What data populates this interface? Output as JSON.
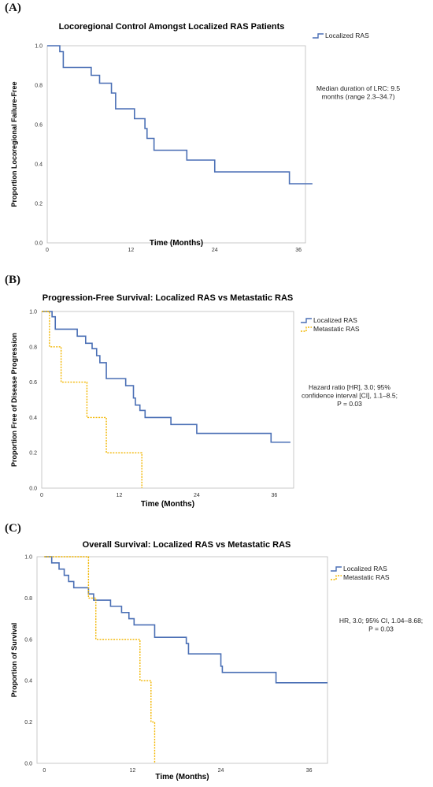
{
  "panels": [
    {
      "letter": "(A)",
      "annotation": [
        "Median duration of LRC: 9.5",
        "months (range 2.3–34.7)"
      ],
      "chart_data": {
        "type": "line",
        "step": true,
        "title": "Locoregional Control Amongst Localized RAS Patients",
        "xlabel": "Time (Months)",
        "ylabel": "Proportion Locoregional Failure-Free",
        "xlim": [
          0,
          37
        ],
        "ylim": [
          0,
          1
        ],
        "xticks": [
          0,
          12,
          24,
          36
        ],
        "yticks": [
          0.0,
          0.2,
          0.4,
          0.6,
          0.8,
          1.0
        ],
        "legend_position": "top-right",
        "grid": false,
        "series": [
          {
            "name": "Localized RAS",
            "color": "#4a6fb5",
            "dashed": false,
            "x": [
              0,
              1.8,
              2.3,
              6.3,
              7.5,
              9.2,
              9.8,
              12.5,
              14.0,
              14.3,
              15.3,
              20.0,
              24.0,
              34.7,
              38.0
            ],
            "y": [
              1.0,
              0.97,
              0.89,
              0.85,
              0.81,
              0.76,
              0.68,
              0.63,
              0.58,
              0.53,
              0.47,
              0.42,
              0.36,
              0.3,
              0.3
            ]
          }
        ]
      }
    },
    {
      "letter": "(B)",
      "annotation": [
        "Hazard ratio [HR], 3.0; 95%",
        "confidence interval [CI], 1.1–8.5;",
        "P = 0.03"
      ],
      "chart_data": {
        "type": "line",
        "step": true,
        "title": "Progression-Free Survival:  Localized RAS vs Metastatic RAS",
        "xlabel": "Time (Months)",
        "ylabel": "Proportion Free of Disease Progression",
        "xlim": [
          0,
          39
        ],
        "ylim": [
          0,
          1
        ],
        "xticks": [
          0,
          12,
          24,
          36
        ],
        "yticks": [
          0.0,
          0.2,
          0.4,
          0.6,
          0.8,
          1.0
        ],
        "legend_position": "top-right",
        "grid": false,
        "series": [
          {
            "name": "Localized RAS",
            "color": "#4a6fb5",
            "dashed": false,
            "x": [
              0,
              1.6,
              2.1,
              5.5,
              6.8,
              7.8,
              8.5,
              9.0,
              10.0,
              13.0,
              14.2,
              14.5,
              15.2,
              16.0,
              20.0,
              24.0,
              35.5,
              38.5
            ],
            "y": [
              1.0,
              0.97,
              0.9,
              0.86,
              0.82,
              0.79,
              0.75,
              0.71,
              0.62,
              0.58,
              0.51,
              0.47,
              0.44,
              0.4,
              0.36,
              0.31,
              0.26,
              0.26
            ]
          },
          {
            "name": "Metastatic RAS",
            "color": "#f2b600",
            "dashed": true,
            "x": [
              0,
              1.2,
              3.0,
              7.0,
              10.0,
              15.5
            ],
            "y": [
              1.0,
              0.8,
              0.6,
              0.4,
              0.2,
              0.0
            ]
          }
        ]
      }
    },
    {
      "letter": "(C)",
      "annotation": [
        "HR, 3.0; 95% CI, 1.04–8.68;",
        "P = 0.03"
      ],
      "chart_data": {
        "type": "line",
        "step": true,
        "title": "Overall Survival:  Localized RAS vs Metastatic RAS",
        "xlabel": "Time (Months)",
        "ylabel": "Proportion of Survival",
        "xlim": [
          -1,
          38.5
        ],
        "ylim": [
          0,
          1
        ],
        "xticks": [
          0,
          12,
          24,
          36
        ],
        "yticks": [
          0.0,
          0.2,
          0.4,
          0.6,
          0.8,
          1.0
        ],
        "legend_position": "top-right",
        "grid": false,
        "series": [
          {
            "name": "Localized RAS",
            "color": "#4a6fb5",
            "dashed": false,
            "x": [
              0,
              1.0,
              2.0,
              2.7,
              3.3,
              4.0,
              6.0,
              6.7,
              9.0,
              10.5,
              11.5,
              12.2,
              15.0,
              19.3,
              19.6,
              24.0,
              24.2,
              31.5,
              38.5
            ],
            "y": [
              1.0,
              0.97,
              0.94,
              0.91,
              0.88,
              0.85,
              0.82,
              0.79,
              0.76,
              0.73,
              0.7,
              0.67,
              0.61,
              0.58,
              0.53,
              0.47,
              0.44,
              0.39,
              0.39
            ]
          },
          {
            "name": "Metastatic RAS",
            "color": "#f2b600",
            "dashed": true,
            "x": [
              0,
              6.0,
              6.5,
              7.0,
              13.0,
              14.5,
              15.0
            ],
            "y": [
              1.0,
              0.8,
              0.8,
              0.6,
              0.4,
              0.2,
              0.0
            ]
          }
        ]
      }
    }
  ]
}
